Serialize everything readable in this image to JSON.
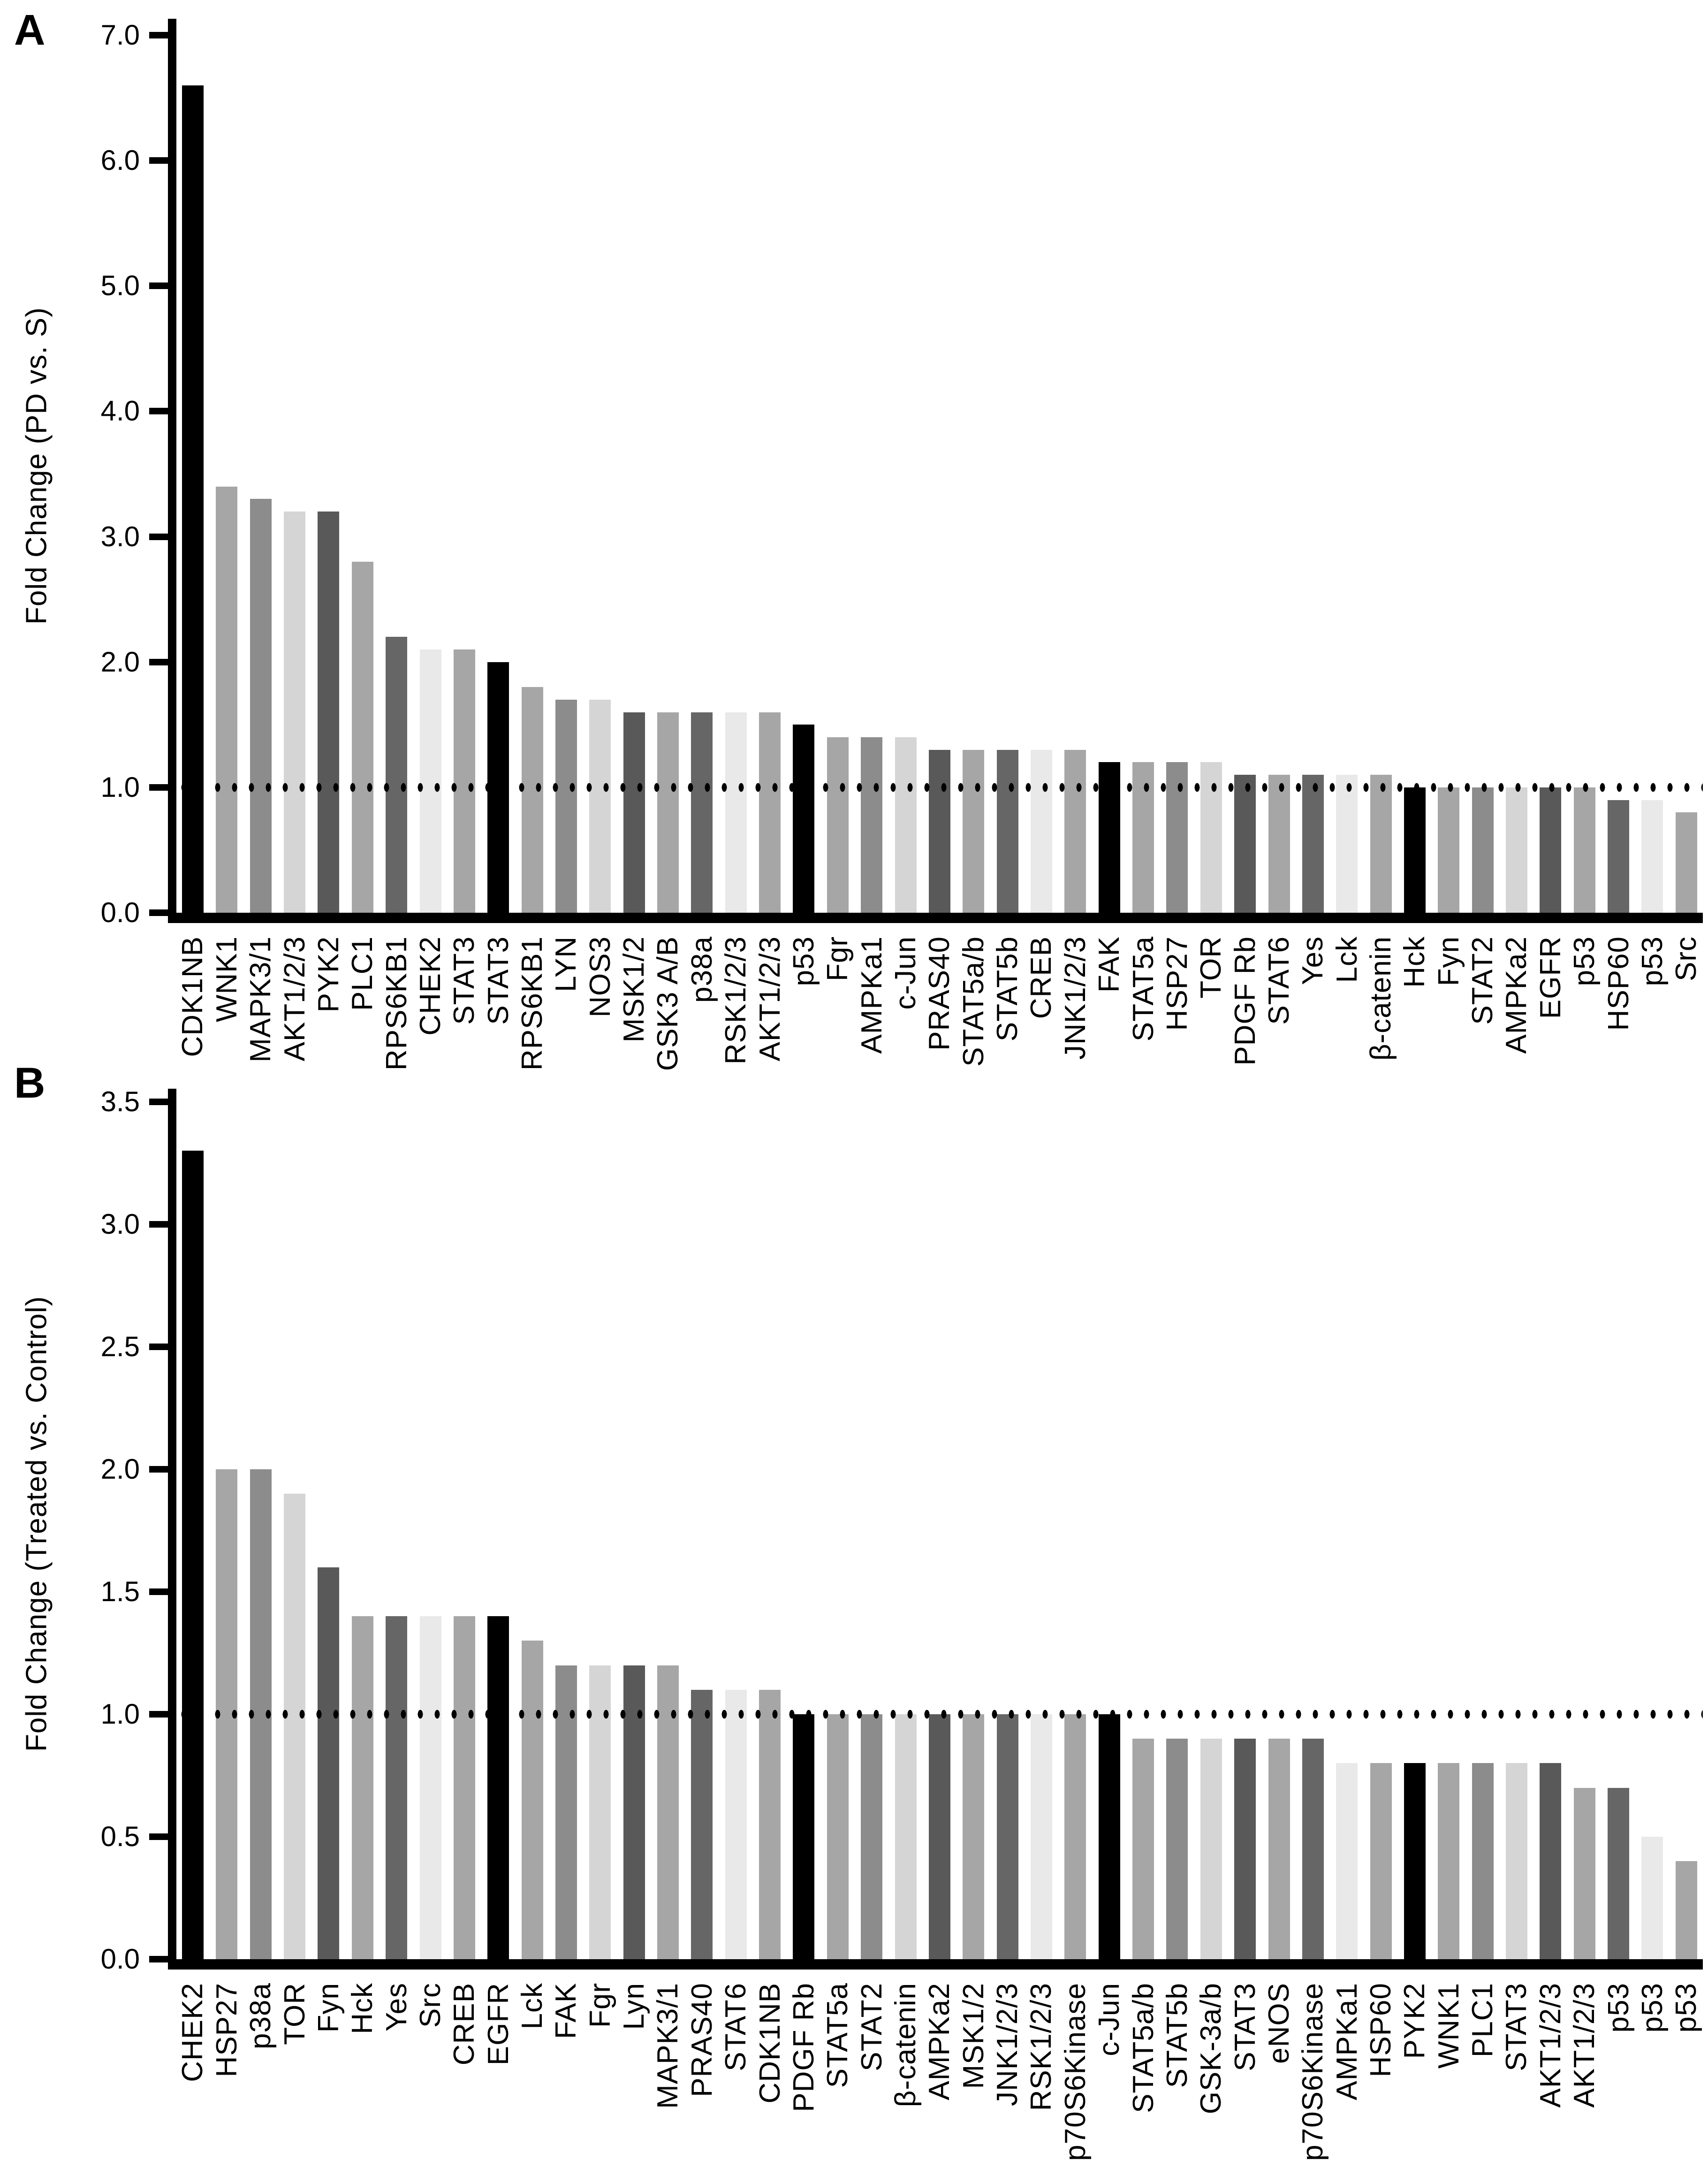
{
  "figure": {
    "background": "#ffffff",
    "reference_line_color": "#000000",
    "axis_color": "#000000"
  },
  "chart_data": [
    {
      "type": "bar",
      "panel_label": "A",
      "title": "",
      "xlabel": "",
      "ylabel": "Fold Change (PD vs. S)",
      "ylim": [
        0,
        7.0
      ],
      "yticks": [
        0,
        1,
        2,
        3,
        4,
        5,
        6,
        7
      ],
      "ytick_labels": [
        "0.0",
        "1.0",
        "2.0",
        "3.0",
        "4.0",
        "5.0",
        "6.0",
        "7.0"
      ],
      "grid": false,
      "legend_position": "none",
      "reference_line_y": 1.0,
      "reference_line_style": "dotted",
      "bar_palette_cycle": [
        "#000000",
        "#a6a6a6",
        "#8c8c8c",
        "#d5d5d5",
        "#595959",
        "#a6a6a6",
        "#666666",
        "#e9e9e9",
        "#a6a6a6"
      ],
      "categories": [
        "CDK1NB",
        "WNK1",
        "MAPK3/1",
        "AKT1/2/3",
        "PYK2",
        "PLC1",
        "RPS6KB1",
        "CHEK2",
        "STAT3",
        "STAT3",
        "RPS6KB1",
        "LYN",
        "NOS3",
        "MSK1/2",
        "GSK3 A/B",
        "p38a",
        "RSK1/2/3",
        "AKT1/2/3",
        "p53",
        "Fgr",
        "AMPKa1",
        "c-Jun",
        "PRAS40",
        "STAT5a/b",
        "STAT5b",
        "CREB",
        "JNK1/2/3",
        "FAK",
        "STAT5a",
        "HSP27",
        "TOR",
        "PDGF Rb",
        "STAT6",
        "Yes",
        "Lck",
        "β-catenin",
        "Hck",
        "Fyn",
        "STAT2",
        "AMPKa2",
        "EGFR",
        "p53",
        "HSP60",
        "p53",
        "Src"
      ],
      "values": [
        6.6,
        3.4,
        3.3,
        3.2,
        3.2,
        2.8,
        2.2,
        2.1,
        2.1,
        2.0,
        1.8,
        1.7,
        1.7,
        1.6,
        1.6,
        1.6,
        1.6,
        1.6,
        1.5,
        1.4,
        1.4,
        1.4,
        1.3,
        1.3,
        1.3,
        1.3,
        1.3,
        1.2,
        1.2,
        1.2,
        1.2,
        1.1,
        1.1,
        1.1,
        1.1,
        1.1,
        1.0,
        1.0,
        1.0,
        1.0,
        1.0,
        1.0,
        0.9,
        0.9,
        0.8
      ]
    },
    {
      "type": "bar",
      "panel_label": "B",
      "title": "",
      "xlabel": "",
      "ylabel": "Fold Change (Treated vs. Control)",
      "ylim": [
        0,
        3.5
      ],
      "yticks": [
        0,
        0.5,
        1.0,
        1.5,
        2.0,
        2.5,
        3.0,
        3.5
      ],
      "ytick_labels": [
        "0.0",
        "0.5",
        "1.0",
        "1.5",
        "2.0",
        "2.5",
        "3.0",
        "3.5"
      ],
      "grid": false,
      "legend_position": "none",
      "reference_line_y": 1.0,
      "reference_line_style": "dotted",
      "bar_palette_cycle": [
        "#000000",
        "#a6a6a6",
        "#8c8c8c",
        "#d5d5d5",
        "#595959",
        "#a6a6a6",
        "#666666",
        "#e9e9e9",
        "#a6a6a6"
      ],
      "categories": [
        "CHEK2",
        "HSP27",
        "p38a",
        "TOR",
        "Fyn",
        "Hck",
        "Yes",
        "Src",
        "CREB",
        "EGFR",
        "Lck",
        "FAK",
        "Fgr",
        "Lyn",
        "MAPK3/1",
        "PRAS40",
        "STAT6",
        "CDK1NB",
        "PDGF Rb",
        "STAT5a",
        "STAT2",
        "β-catenin",
        "AMPKa2",
        "MSK1/2",
        "JNK1/2/3",
        "RSK1/2/3",
        "p70S6Kinase",
        "c-Jun",
        "STAT5a/b",
        "STAT5b",
        "GSK-3a/b",
        "STAT3",
        "eNOS",
        "p70S6Kinase",
        "AMPKa1",
        "HSP60",
        "PYK2",
        "WNK1",
        "PLC1",
        "STAT3",
        "AKT1/2/3",
        "AKT1/2/3",
        "p53",
        "p53",
        "p53"
      ],
      "values": [
        3.3,
        2.0,
        2.0,
        1.9,
        1.6,
        1.4,
        1.4,
        1.4,
        1.4,
        1.4,
        1.3,
        1.2,
        1.2,
        1.2,
        1.2,
        1.1,
        1.1,
        1.1,
        1.0,
        1.0,
        1.0,
        1.0,
        1.0,
        1.0,
        1.0,
        1.0,
        1.0,
        1.0,
        0.9,
        0.9,
        0.9,
        0.9,
        0.9,
        0.9,
        0.8,
        0.8,
        0.8,
        0.8,
        0.8,
        0.8,
        0.8,
        0.7,
        0.7,
        0.5,
        0.4
      ]
    }
  ]
}
